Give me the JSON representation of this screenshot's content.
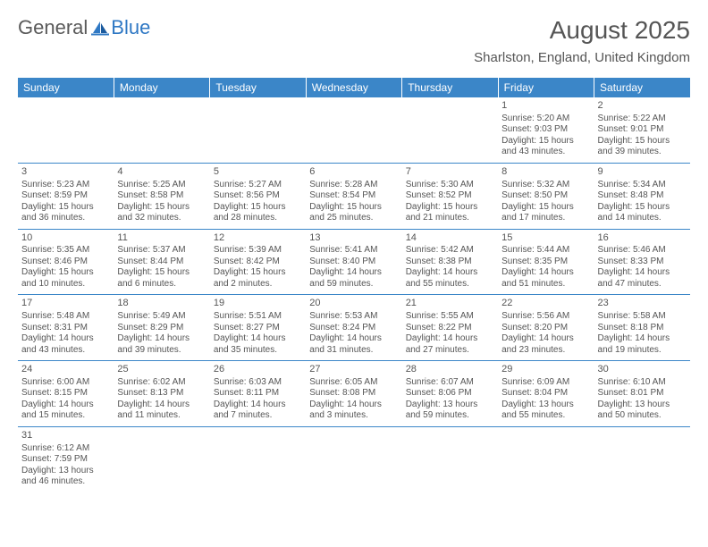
{
  "logo": {
    "text1": "General",
    "text2": "Blue"
  },
  "title": "August 2025",
  "location": "Sharlston, England, United Kingdom",
  "colors": {
    "header_bg": "#3b86c8",
    "header_fg": "#ffffff",
    "text": "#555555",
    "rule": "#3b86c8",
    "logo_blue": "#2f78c4"
  },
  "weekdays": [
    "Sunday",
    "Monday",
    "Tuesday",
    "Wednesday",
    "Thursday",
    "Friday",
    "Saturday"
  ],
  "weeks": [
    [
      null,
      null,
      null,
      null,
      null,
      {
        "n": "1",
        "sr": "Sunrise: 5:20 AM",
        "ss": "Sunset: 9:03 PM",
        "dl": "Daylight: 15 hours and 43 minutes."
      },
      {
        "n": "2",
        "sr": "Sunrise: 5:22 AM",
        "ss": "Sunset: 9:01 PM",
        "dl": "Daylight: 15 hours and 39 minutes."
      }
    ],
    [
      {
        "n": "3",
        "sr": "Sunrise: 5:23 AM",
        "ss": "Sunset: 8:59 PM",
        "dl": "Daylight: 15 hours and 36 minutes."
      },
      {
        "n": "4",
        "sr": "Sunrise: 5:25 AM",
        "ss": "Sunset: 8:58 PM",
        "dl": "Daylight: 15 hours and 32 minutes."
      },
      {
        "n": "5",
        "sr": "Sunrise: 5:27 AM",
        "ss": "Sunset: 8:56 PM",
        "dl": "Daylight: 15 hours and 28 minutes."
      },
      {
        "n": "6",
        "sr": "Sunrise: 5:28 AM",
        "ss": "Sunset: 8:54 PM",
        "dl": "Daylight: 15 hours and 25 minutes."
      },
      {
        "n": "7",
        "sr": "Sunrise: 5:30 AM",
        "ss": "Sunset: 8:52 PM",
        "dl": "Daylight: 15 hours and 21 minutes."
      },
      {
        "n": "8",
        "sr": "Sunrise: 5:32 AM",
        "ss": "Sunset: 8:50 PM",
        "dl": "Daylight: 15 hours and 17 minutes."
      },
      {
        "n": "9",
        "sr": "Sunrise: 5:34 AM",
        "ss": "Sunset: 8:48 PM",
        "dl": "Daylight: 15 hours and 14 minutes."
      }
    ],
    [
      {
        "n": "10",
        "sr": "Sunrise: 5:35 AM",
        "ss": "Sunset: 8:46 PM",
        "dl": "Daylight: 15 hours and 10 minutes."
      },
      {
        "n": "11",
        "sr": "Sunrise: 5:37 AM",
        "ss": "Sunset: 8:44 PM",
        "dl": "Daylight: 15 hours and 6 minutes."
      },
      {
        "n": "12",
        "sr": "Sunrise: 5:39 AM",
        "ss": "Sunset: 8:42 PM",
        "dl": "Daylight: 15 hours and 2 minutes."
      },
      {
        "n": "13",
        "sr": "Sunrise: 5:41 AM",
        "ss": "Sunset: 8:40 PM",
        "dl": "Daylight: 14 hours and 59 minutes."
      },
      {
        "n": "14",
        "sr": "Sunrise: 5:42 AM",
        "ss": "Sunset: 8:38 PM",
        "dl": "Daylight: 14 hours and 55 minutes."
      },
      {
        "n": "15",
        "sr": "Sunrise: 5:44 AM",
        "ss": "Sunset: 8:35 PM",
        "dl": "Daylight: 14 hours and 51 minutes."
      },
      {
        "n": "16",
        "sr": "Sunrise: 5:46 AM",
        "ss": "Sunset: 8:33 PM",
        "dl": "Daylight: 14 hours and 47 minutes."
      }
    ],
    [
      {
        "n": "17",
        "sr": "Sunrise: 5:48 AM",
        "ss": "Sunset: 8:31 PM",
        "dl": "Daylight: 14 hours and 43 minutes."
      },
      {
        "n": "18",
        "sr": "Sunrise: 5:49 AM",
        "ss": "Sunset: 8:29 PM",
        "dl": "Daylight: 14 hours and 39 minutes."
      },
      {
        "n": "19",
        "sr": "Sunrise: 5:51 AM",
        "ss": "Sunset: 8:27 PM",
        "dl": "Daylight: 14 hours and 35 minutes."
      },
      {
        "n": "20",
        "sr": "Sunrise: 5:53 AM",
        "ss": "Sunset: 8:24 PM",
        "dl": "Daylight: 14 hours and 31 minutes."
      },
      {
        "n": "21",
        "sr": "Sunrise: 5:55 AM",
        "ss": "Sunset: 8:22 PM",
        "dl": "Daylight: 14 hours and 27 minutes."
      },
      {
        "n": "22",
        "sr": "Sunrise: 5:56 AM",
        "ss": "Sunset: 8:20 PM",
        "dl": "Daylight: 14 hours and 23 minutes."
      },
      {
        "n": "23",
        "sr": "Sunrise: 5:58 AM",
        "ss": "Sunset: 8:18 PM",
        "dl": "Daylight: 14 hours and 19 minutes."
      }
    ],
    [
      {
        "n": "24",
        "sr": "Sunrise: 6:00 AM",
        "ss": "Sunset: 8:15 PM",
        "dl": "Daylight: 14 hours and 15 minutes."
      },
      {
        "n": "25",
        "sr": "Sunrise: 6:02 AM",
        "ss": "Sunset: 8:13 PM",
        "dl": "Daylight: 14 hours and 11 minutes."
      },
      {
        "n": "26",
        "sr": "Sunrise: 6:03 AM",
        "ss": "Sunset: 8:11 PM",
        "dl": "Daylight: 14 hours and 7 minutes."
      },
      {
        "n": "27",
        "sr": "Sunrise: 6:05 AM",
        "ss": "Sunset: 8:08 PM",
        "dl": "Daylight: 14 hours and 3 minutes."
      },
      {
        "n": "28",
        "sr": "Sunrise: 6:07 AM",
        "ss": "Sunset: 8:06 PM",
        "dl": "Daylight: 13 hours and 59 minutes."
      },
      {
        "n": "29",
        "sr": "Sunrise: 6:09 AM",
        "ss": "Sunset: 8:04 PM",
        "dl": "Daylight: 13 hours and 55 minutes."
      },
      {
        "n": "30",
        "sr": "Sunrise: 6:10 AM",
        "ss": "Sunset: 8:01 PM",
        "dl": "Daylight: 13 hours and 50 minutes."
      }
    ],
    [
      {
        "n": "31",
        "sr": "Sunrise: 6:12 AM",
        "ss": "Sunset: 7:59 PM",
        "dl": "Daylight: 13 hours and 46 minutes."
      },
      null,
      null,
      null,
      null,
      null,
      null
    ]
  ]
}
